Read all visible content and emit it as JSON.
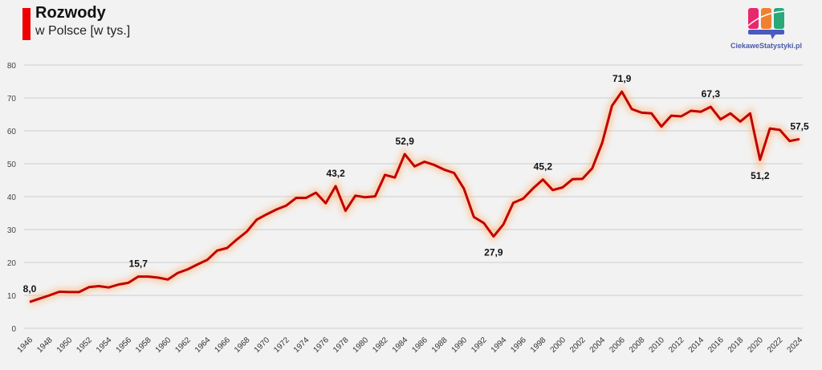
{
  "chart_data": {
    "type": "line",
    "title": "Rozwody",
    "subtitle": "w Polsce [w tys.]",
    "xlabel": "",
    "ylabel": "",
    "ylim": [
      0,
      80
    ],
    "yticks": [
      0,
      10,
      20,
      30,
      40,
      50,
      60,
      70,
      80
    ],
    "grid": true,
    "legend": "none",
    "line_color": "#c00000",
    "x": [
      1946,
      1947,
      1948,
      1949,
      1950,
      1951,
      1952,
      1953,
      1954,
      1955,
      1956,
      1957,
      1958,
      1959,
      1960,
      1961,
      1962,
      1963,
      1964,
      1965,
      1966,
      1967,
      1968,
      1969,
      1970,
      1971,
      1972,
      1973,
      1974,
      1975,
      1976,
      1977,
      1978,
      1979,
      1980,
      1981,
      1982,
      1983,
      1984,
      1985,
      1986,
      1987,
      1988,
      1989,
      1990,
      1991,
      1992,
      1993,
      1994,
      1995,
      1996,
      1997,
      1998,
      1999,
      2000,
      2001,
      2002,
      2003,
      2004,
      2005,
      2006,
      2007,
      2008,
      2009,
      2010,
      2011,
      2012,
      2013,
      2014,
      2015,
      2016,
      2017,
      2018,
      2019,
      2020,
      2021,
      2022,
      2023,
      2024
    ],
    "values": [
      8.0,
      9.0,
      10.0,
      11.1,
      11.0,
      11.0,
      12.5,
      12.8,
      12.4,
      13.3,
      13.8,
      15.7,
      15.7,
      15.4,
      14.8,
      16.8,
      17.9,
      19.4,
      20.8,
      23.6,
      24.4,
      27.0,
      29.4,
      33.0,
      34.6,
      36.1,
      37.3,
      39.6,
      39.6,
      41.2,
      38.0,
      43.2,
      35.7,
      40.3,
      39.8,
      40.1,
      46.6,
      45.8,
      52.9,
      49.2,
      50.6,
      49.6,
      48.2,
      47.2,
      42.4,
      33.8,
      32.0,
      27.9,
      31.6,
      38.1,
      39.4,
      42.5,
      45.2,
      42.0,
      42.8,
      45.3,
      45.4,
      48.6,
      56.3,
      67.6,
      71.9,
      66.6,
      65.5,
      65.3,
      61.3,
      64.6,
      64.4,
      66.1,
      65.8,
      67.3,
      63.5,
      65.3,
      62.8,
      65.3,
      51.2,
      60.7,
      60.3,
      56.9,
      57.5
    ],
    "data_labels": [
      {
        "x": 1946,
        "text": "8,0",
        "pos": "above"
      },
      {
        "x": 1957,
        "text": "15,7",
        "pos": "above"
      },
      {
        "x": 1977,
        "text": "43,2",
        "pos": "above"
      },
      {
        "x": 1984,
        "text": "52,9",
        "pos": "above"
      },
      {
        "x": 1993,
        "text": "27,9",
        "pos": "below"
      },
      {
        "x": 1998,
        "text": "45,2",
        "pos": "above"
      },
      {
        "x": 2006,
        "text": "71,9",
        "pos": "above"
      },
      {
        "x": 2015,
        "text": "67,3",
        "pos": "above"
      },
      {
        "x": 2020,
        "text": "51,2",
        "pos": "below"
      },
      {
        "x": 2024,
        "text": "57,5",
        "pos": "above"
      }
    ]
  },
  "logo": {
    "text": "CiekaweStatystyki.pl",
    "colors": [
      "#e8286e",
      "#f08030",
      "#2aa87a",
      "#4a5ac0"
    ]
  }
}
